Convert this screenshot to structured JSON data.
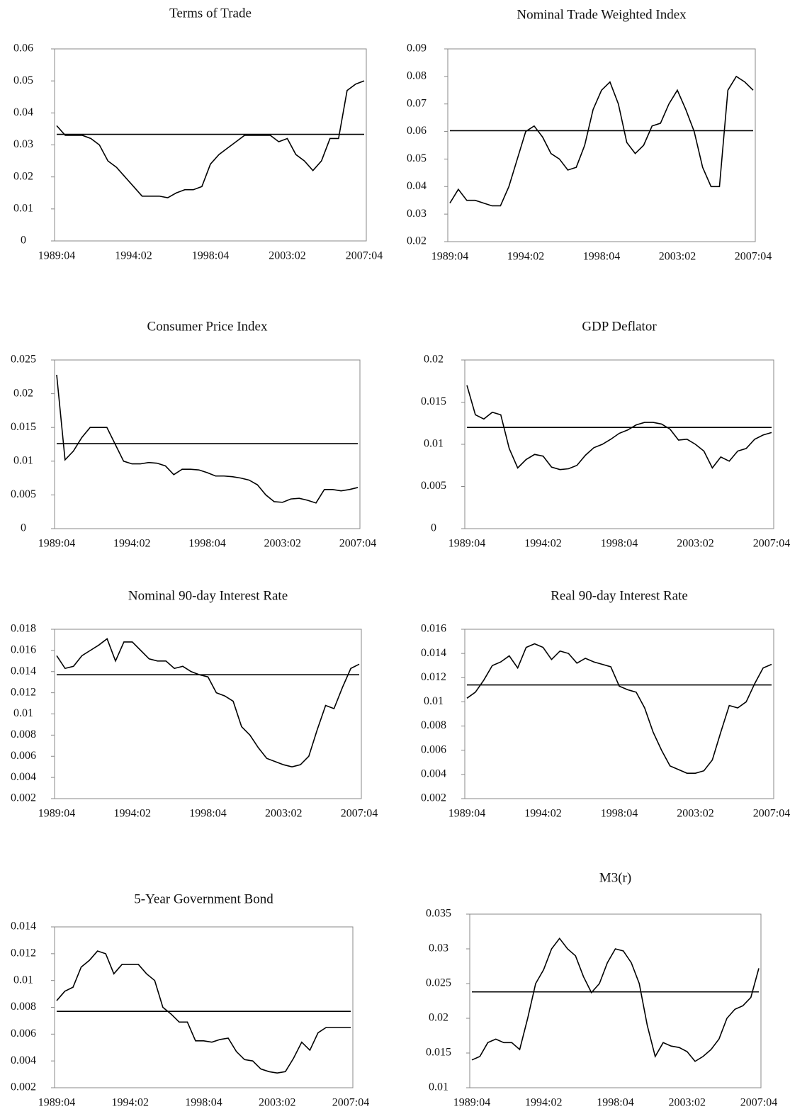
{
  "chart_data": [
    {
      "type": "line",
      "title": "Terms of Trade",
      "categories": [
        "1989:04",
        null,
        null,
        null,
        null,
        null,
        null,
        null,
        null,
        "1994:02",
        null,
        null,
        null,
        null,
        null,
        null,
        null,
        null,
        "1998:04",
        null,
        null,
        null,
        null,
        null,
        null,
        null,
        null,
        "2003:02",
        null,
        null,
        null,
        null,
        null,
        null,
        null,
        null,
        "2007:04"
      ],
      "series": [
        {
          "color": "#000000",
          "values": [
            0.036,
            0.033,
            0.033,
            0.033,
            0.032,
            0.03,
            0.025,
            0.023,
            0.02,
            0.017,
            0.014,
            0.014,
            0.014,
            0.0135,
            0.015,
            0.016,
            0.016,
            0.017,
            0.024,
            0.027,
            0.029,
            0.031,
            0.033,
            0.033,
            0.033,
            0.033,
            0.031,
            0.032,
            0.027,
            0.025,
            0.022,
            0.025,
            0.032,
            0.032,
            0.047,
            0.049,
            0.05
          ]
        }
      ],
      "hline": 0.0333,
      "ylim": [
        0,
        0.06
      ],
      "yticks": [
        0,
        0.01,
        0.02,
        0.03,
        0.04,
        0.05,
        0.06
      ]
    },
    {
      "type": "line",
      "title": "Nominal Trade Weighted Index",
      "categories": [
        "1989:04",
        null,
        null,
        null,
        null,
        null,
        null,
        null,
        null,
        "1994:02",
        null,
        null,
        null,
        null,
        null,
        null,
        null,
        null,
        "1998:04",
        null,
        null,
        null,
        null,
        null,
        null,
        null,
        null,
        "2003:02",
        null,
        null,
        null,
        null,
        null,
        null,
        null,
        null,
        "2007:04"
      ],
      "series": [
        {
          "color": "#000000",
          "values": [
            0.034,
            0.039,
            0.035,
            0.035,
            0.034,
            0.033,
            0.033,
            0.04,
            0.05,
            0.06,
            0.062,
            0.058,
            0.052,
            0.05,
            0.046,
            0.047,
            0.055,
            0.068,
            0.075,
            0.078,
            0.07,
            0.056,
            0.052,
            0.055,
            0.062,
            0.063,
            0.07,
            0.075,
            0.068,
            0.06,
            0.047,
            0.04,
            0.04,
            0.075,
            0.08,
            0.078,
            0.075
          ]
        }
      ],
      "hline": 0.0603,
      "ylim": [
        0.02,
        0.09
      ],
      "yticks": [
        0.02,
        0.03,
        0.04,
        0.05,
        0.06,
        0.07,
        0.08,
        0.09
      ]
    },
    {
      "type": "line",
      "title": "Consumer Price Index",
      "categories": [
        "1989:04",
        null,
        null,
        null,
        null,
        null,
        null,
        null,
        null,
        "1994:02",
        null,
        null,
        null,
        null,
        null,
        null,
        null,
        null,
        "1998:04",
        null,
        null,
        null,
        null,
        null,
        null,
        null,
        null,
        "2003:02",
        null,
        null,
        null,
        null,
        null,
        null,
        null,
        null,
        "2007:04"
      ],
      "series": [
        {
          "color": "#000000",
          "values": [
            0.0228,
            0.0102,
            0.0115,
            0.0135,
            0.015,
            0.015,
            0.015,
            0.0125,
            0.01,
            0.0096,
            0.0096,
            0.0098,
            0.0097,
            0.0093,
            0.008,
            0.0088,
            0.0088,
            0.0087,
            0.0083,
            0.0078,
            0.0078,
            0.0077,
            0.0075,
            0.0072,
            0.0065,
            0.005,
            0.004,
            0.0039,
            0.0044,
            0.0045,
            0.0042,
            0.0038,
            0.0058,
            0.0058,
            0.0056,
            0.0058,
            0.0061
          ]
        }
      ],
      "hline": 0.0126,
      "ylim": [
        0,
        0.025
      ],
      "yticks": [
        0,
        0.005,
        0.01,
        0.015,
        0.02,
        0.025
      ]
    },
    {
      "type": "line",
      "title": "GDP Deflator",
      "categories": [
        "1989:04",
        null,
        null,
        null,
        null,
        null,
        null,
        null,
        null,
        "1994:02",
        null,
        null,
        null,
        null,
        null,
        null,
        null,
        null,
        "1998:04",
        null,
        null,
        null,
        null,
        null,
        null,
        null,
        null,
        "2003:02",
        null,
        null,
        null,
        null,
        null,
        null,
        null,
        null,
        "2007:04"
      ],
      "series": [
        {
          "color": "#000000",
          "values": [
            0.017,
            0.0135,
            0.013,
            0.0138,
            0.0135,
            0.0095,
            0.0072,
            0.0082,
            0.0088,
            0.0086,
            0.0073,
            0.007,
            0.0071,
            0.0075,
            0.0087,
            0.0096,
            0.01,
            0.0106,
            0.0113,
            0.0117,
            0.0123,
            0.0126,
            0.0126,
            0.0124,
            0.0118,
            0.0105,
            0.0106,
            0.01,
            0.0092,
            0.0072,
            0.0085,
            0.008,
            0.0092,
            0.0095,
            0.0106,
            0.0111,
            0.0114
          ]
        }
      ],
      "hline": 0.012,
      "ylim": [
        0,
        0.02
      ],
      "yticks": [
        0,
        0.005,
        0.01,
        0.015,
        0.02
      ]
    },
    {
      "type": "line",
      "title": "Nominal 90-day Interest Rate",
      "categories": [
        "1989:04",
        null,
        null,
        null,
        null,
        null,
        null,
        null,
        null,
        "1994:02",
        null,
        null,
        null,
        null,
        null,
        null,
        null,
        null,
        "1998:04",
        null,
        null,
        null,
        null,
        null,
        null,
        null,
        null,
        "2003:02",
        null,
        null,
        null,
        null,
        null,
        null,
        null,
        null,
        "2007:04"
      ],
      "series": [
        {
          "color": "#000000",
          "values": [
            0.0155,
            0.0143,
            0.0145,
            0.0155,
            0.016,
            0.0165,
            0.0171,
            0.015,
            0.0168,
            0.0168,
            0.016,
            0.0152,
            0.015,
            0.015,
            0.0143,
            0.0145,
            0.014,
            0.0137,
            0.0135,
            0.012,
            0.0117,
            0.0112,
            0.0088,
            0.008,
            0.0068,
            0.0058,
            0.0055,
            0.0052,
            0.005,
            0.0052,
            0.006,
            0.0085,
            0.0108,
            0.0105,
            0.0125,
            0.0143,
            0.0147
          ]
        }
      ],
      "hline": 0.0137,
      "ylim": [
        0.002,
        0.018
      ],
      "yticks": [
        0.002,
        0.004,
        0.006,
        0.008,
        0.01,
        0.012,
        0.014,
        0.016,
        0.018
      ]
    },
    {
      "type": "line",
      "title": "Real 90-day Interest Rate",
      "categories": [
        "1989:04",
        null,
        null,
        null,
        null,
        null,
        null,
        null,
        null,
        "1994:02",
        null,
        null,
        null,
        null,
        null,
        null,
        null,
        null,
        "1998:04",
        null,
        null,
        null,
        null,
        null,
        null,
        null,
        null,
        "2003:02",
        null,
        null,
        null,
        null,
        null,
        null,
        null,
        null,
        "2007:04"
      ],
      "series": [
        {
          "color": "#000000",
          "values": [
            0.0103,
            0.0108,
            0.0118,
            0.013,
            0.0133,
            0.0138,
            0.0128,
            0.0145,
            0.0148,
            0.0145,
            0.0135,
            0.0142,
            0.014,
            0.0132,
            0.0136,
            0.0133,
            0.0131,
            0.0129,
            0.0113,
            0.011,
            0.0108,
            0.0095,
            0.0075,
            0.006,
            0.0047,
            0.0044,
            0.0041,
            0.0041,
            0.0043,
            0.0052,
            0.0075,
            0.0097,
            0.0095,
            0.01,
            0.0115,
            0.0128,
            0.0131
          ]
        }
      ],
      "hline": 0.0114,
      "ylim": [
        0.002,
        0.016
      ],
      "yticks": [
        0.002,
        0.004,
        0.006,
        0.008,
        0.01,
        0.012,
        0.014,
        0.016
      ]
    },
    {
      "type": "line",
      "title": "5-Year Government Bond",
      "categories": [
        "1989:04",
        null,
        null,
        null,
        null,
        null,
        null,
        null,
        null,
        "1994:02",
        null,
        null,
        null,
        null,
        null,
        null,
        null,
        null,
        "1998:04",
        null,
        null,
        null,
        null,
        null,
        null,
        null,
        null,
        "2003:02",
        null,
        null,
        null,
        null,
        null,
        null,
        null,
        null,
        "2007:04"
      ],
      "series": [
        {
          "color": "#000000",
          "values": [
            0.0085,
            0.0092,
            0.0095,
            0.011,
            0.0115,
            0.0122,
            0.012,
            0.0105,
            0.0112,
            0.0112,
            0.0112,
            0.0105,
            0.01,
            0.008,
            0.0075,
            0.0069,
            0.0069,
            0.0055,
            0.0055,
            0.0054,
            0.0056,
            0.0057,
            0.0047,
            0.0041,
            0.004,
            0.0034,
            0.0032,
            0.0031,
            0.0032,
            0.0042,
            0.0054,
            0.0048,
            0.0061,
            0.0065,
            0.0065,
            0.0065,
            0.0065
          ]
        }
      ],
      "hline": 0.0077,
      "ylim": [
        0.002,
        0.014
      ],
      "yticks": [
        0.002,
        0.004,
        0.006,
        0.008,
        0.01,
        0.012,
        0.014
      ]
    },
    {
      "type": "line",
      "title": "M3(r)",
      "categories": [
        "1989:04",
        null,
        null,
        null,
        null,
        null,
        null,
        null,
        null,
        "1994:02",
        null,
        null,
        null,
        null,
        null,
        null,
        null,
        null,
        "1998:04",
        null,
        null,
        null,
        null,
        null,
        null,
        null,
        null,
        "2003:02",
        null,
        null,
        null,
        null,
        null,
        null,
        null,
        null,
        "2007:04"
      ],
      "series": [
        {
          "color": "#000000",
          "values": [
            0.014,
            0.0145,
            0.0165,
            0.017,
            0.0165,
            0.0165,
            0.0155,
            0.02,
            0.025,
            0.027,
            0.03,
            0.0315,
            0.03,
            0.029,
            0.026,
            0.0237,
            0.025,
            0.028,
            0.03,
            0.0297,
            0.028,
            0.025,
            0.019,
            0.0145,
            0.0165,
            0.016,
            0.0158,
            0.0152,
            0.0138,
            0.0145,
            0.0155,
            0.017,
            0.02,
            0.0213,
            0.0218,
            0.023,
            0.0272
          ]
        }
      ],
      "hline": 0.0238,
      "ylim": [
        0.01,
        0.035
      ],
      "yticks": [
        0.01,
        0.015,
        0.02,
        0.025,
        0.03,
        0.035
      ]
    }
  ]
}
